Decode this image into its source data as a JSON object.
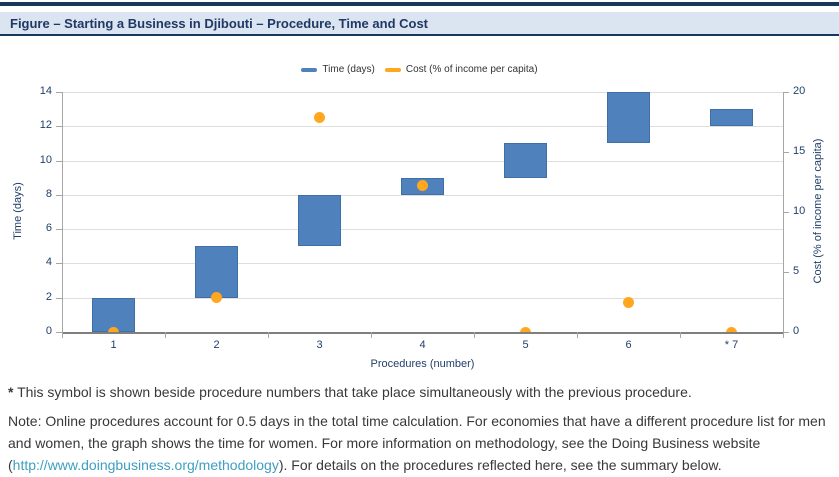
{
  "figure": {
    "title": "Figure – Starting a Business in Djibouti – Procedure, Time and Cost"
  },
  "legend": [
    {
      "label": "Time (days)",
      "color": "#4f81bd",
      "icon": "blue-dash-swatch"
    },
    {
      "label": "Cost (% of income per capita)",
      "color": "#ffa71f",
      "icon": "orange-dash-swatch"
    }
  ],
  "chart_data": {
    "type": "bar",
    "subtype": "floating-bars-with-scatter-overlay",
    "title": "Starting a Business in Djibouti – Procedure, Time and Cost",
    "categories": [
      "1",
      "2",
      "3",
      "4",
      "5",
      "6",
      "* 7"
    ],
    "xlabel": "Procedures (number)",
    "left_axis": {
      "label": "Time (days)",
      "ticks": [
        0,
        2,
        4,
        6,
        8,
        10,
        12,
        14
      ],
      "range": [
        0,
        14
      ],
      "grid": true
    },
    "right_axis": {
      "label": "Cost (% of income per capita)",
      "ticks": [
        0,
        5,
        10,
        15,
        20
      ],
      "range": [
        0,
        20
      ]
    },
    "legend_position": "top-center",
    "series": [
      {
        "name": "Time (days)",
        "type": "floating-bar",
        "axis": "left",
        "color": "#4f81bd",
        "ranges": [
          [
            0,
            2
          ],
          [
            2,
            5
          ],
          [
            5,
            8
          ],
          [
            8,
            9
          ],
          [
            9,
            11
          ],
          [
            11,
            14
          ],
          [
            12,
            13
          ]
        ]
      },
      {
        "name": "Cost (% of income per capita)",
        "type": "scatter",
        "axis": "right",
        "color": "#ffa71f",
        "values": [
          0,
          2.9,
          17.9,
          12.2,
          0,
          2.5,
          0
        ]
      }
    ]
  },
  "footnotes": {
    "asterisk": "*",
    "asterisk_text": " This symbol is shown beside procedure numbers that take place simultaneously with the previous procedure.",
    "note_before_link": "Note: Online procedures account for 0.5 days in the total time calculation. For economies that have a different procedure list for men and women, the graph shows the time for women.  For more information on methodology, see the Doing Business website (",
    "note_link": "http://www.doingbusiness.org/methodology",
    "note_after_link": "). For details on the procedures reflected here, see the summary below."
  },
  "colors": {
    "navy": "#17375d",
    "title_text": "#1f3864",
    "band_bg": "#dbe5f1",
    "bar_fill": "#4f81bd",
    "bar_border": "#3e6fa7",
    "dot_fill": "#ffa71f",
    "axis_text": "#21406b",
    "gridline": "#dedede",
    "link": "#3e9fc0"
  }
}
